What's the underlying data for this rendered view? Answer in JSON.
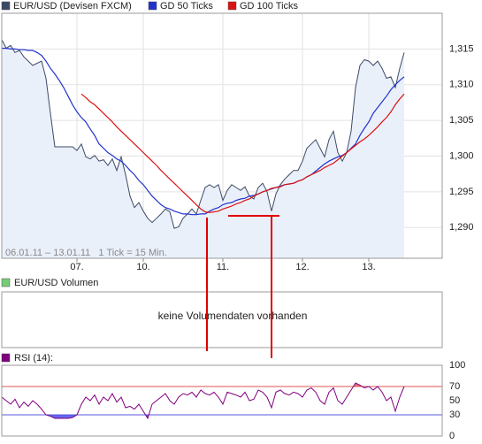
{
  "chart_data": [
    {
      "type": "line",
      "subtitle": "06.01.11 – 13.01.11   1 Tick = 15 Min.",
      "x": [
        0,
        1,
        2,
        3,
        4,
        5,
        6,
        7,
        8,
        9,
        10,
        11,
        12,
        13,
        14,
        15,
        16,
        17,
        18,
        19,
        20,
        21,
        22,
        23,
        24,
        25,
        26,
        27,
        28,
        29,
        30,
        31,
        32,
        33,
        34,
        35,
        36,
        37,
        38,
        39,
        40,
        41,
        42,
        43,
        44,
        45,
        46,
        47,
        48,
        49,
        50,
        51,
        52,
        53,
        54,
        55,
        56,
        57,
        58,
        59,
        60,
        61,
        62,
        63,
        64,
        65,
        66,
        67,
        68,
        69,
        70,
        71,
        72,
        73,
        74,
        75,
        76,
        77,
        78,
        79,
        80,
        81,
        82,
        83,
        84,
        85,
        86,
        87,
        88,
        89,
        90,
        91
      ],
      "series": [
        {
          "name": "EUR/USD (Devisen FXCM)",
          "color": "#3d4a66",
          "values": [
            1.3163,
            1.3151,
            1.3155,
            1.3145,
            1.3148,
            1.3139,
            1.3133,
            1.3127,
            1.313,
            1.3133,
            1.3109,
            1.306,
            1.3013,
            1.3013,
            1.3013,
            1.3013,
            1.3013,
            1.3008,
            1.3017,
            1.2999,
            1.2996,
            1.3001,
            1.2993,
            1.2995,
            1.2987,
            1.2996,
            1.298,
            1.2999,
            1.2974,
            1.2944,
            1.2928,
            1.2935,
            1.2923,
            1.2913,
            1.2907,
            1.2913,
            1.2919,
            1.2926,
            1.2922,
            1.2899,
            1.2901,
            1.2913,
            1.2919,
            1.2926,
            1.2919,
            1.2938,
            1.2956,
            1.296,
            1.2956,
            1.296,
            1.2938,
            1.2952,
            1.296,
            1.2956,
            1.2952,
            1.2957,
            1.2944,
            1.294,
            1.2956,
            1.2962,
            1.295,
            1.2923,
            1.2947,
            1.296,
            1.2968,
            1.2974,
            1.298,
            1.298,
            1.2993,
            1.3011,
            1.3017,
            1.3023,
            1.3011,
            1.2999,
            1.3023,
            1.3035,
            1.3005,
            1.2993,
            1.3005,
            1.3035,
            1.3096,
            1.3127,
            1.3135,
            1.3133,
            1.3127,
            1.3133,
            1.3123,
            1.3109,
            1.3111,
            1.3096,
            1.3123,
            1.3145
          ]
        },
        {
          "name": "GD 50 Ticks",
          "color": "#2233cc",
          "values": [
            1.3151,
            1.3151,
            1.315,
            1.315,
            1.3149,
            1.3149,
            1.3148,
            1.3148,
            1.3145,
            1.3141,
            1.3133,
            1.3123,
            1.3115,
            1.3106,
            1.3096,
            1.3084,
            1.3072,
            1.3062,
            1.3054,
            1.3048,
            1.3038,
            1.3029,
            1.3017,
            1.3011,
            1.3005,
            1.3001,
            1.2996,
            1.2993,
            1.2987,
            1.298,
            1.2974,
            1.2966,
            1.296,
            1.2952,
            1.2944,
            1.2938,
            1.2932,
            1.2928,
            1.2926,
            1.2923,
            1.2921,
            1.2919,
            1.2919,
            1.2918,
            1.2918,
            1.2919,
            1.2919,
            1.2923,
            1.2926,
            1.2928,
            1.2932,
            1.2934,
            1.2935,
            1.2938,
            1.294,
            1.2941,
            1.2944,
            1.2945,
            1.2947,
            1.295,
            1.2952,
            1.2954,
            1.2956,
            1.2958,
            1.296,
            1.2961,
            1.2962,
            1.2965,
            1.2967,
            1.2971,
            1.2974,
            1.2979,
            1.2984,
            1.2989,
            1.2993,
            1.2996,
            1.2999,
            1.3001,
            1.3005,
            1.3011,
            1.3017,
            1.3029,
            1.3039,
            1.3048,
            1.306,
            1.3068,
            1.3076,
            1.3084,
            1.3093,
            1.31,
            1.3106,
            1.3111
          ]
        },
        {
          "name": "GD 100 Ticks",
          "color": "#dd1111",
          "values": [
            null,
            null,
            null,
            null,
            null,
            null,
            null,
            null,
            null,
            null,
            null,
            null,
            null,
            null,
            null,
            null,
            null,
            null,
            1.3087,
            1.3082,
            1.3076,
            1.3072,
            1.3066,
            1.306,
            1.3054,
            1.3048,
            1.3041,
            1.3035,
            1.3029,
            1.3023,
            1.3017,
            1.3011,
            1.3005,
            1.2999,
            1.2993,
            1.2987,
            1.298,
            1.2974,
            1.2968,
            1.2962,
            1.2956,
            1.295,
            1.2944,
            1.2938,
            1.2932,
            1.2926,
            1.2922,
            1.2921,
            1.2922,
            1.2923,
            1.2926,
            1.2928,
            1.293,
            1.2933,
            1.2935,
            1.2938,
            1.294,
            1.2944,
            1.2947,
            1.295,
            1.2952,
            1.2955,
            1.2956,
            1.2957,
            1.296,
            1.2961,
            1.2962,
            1.2965,
            1.2967,
            1.2971,
            1.2974,
            1.2977,
            1.298,
            1.2984,
            1.2987,
            1.299,
            1.2995,
            1.3,
            1.3005,
            1.301,
            1.3015,
            1.302,
            1.3024,
            1.3029,
            1.3035,
            1.3041,
            1.3048,
            1.3054,
            1.3062,
            1.3072,
            1.308,
            1.3087
          ]
        }
      ],
      "area_color": "#eaf0fa",
      "xlim": [
        0,
        99.6
      ],
      "xticks": [
        {
          "value": 17,
          "label": "07."
        },
        {
          "value": 32,
          "label": "10."
        },
        {
          "value": 50,
          "label": "11."
        },
        {
          "value": 68,
          "label": "12."
        },
        {
          "value": 83,
          "label": "13."
        }
      ],
      "ylim": [
        1.2857,
        1.32
      ],
      "yticks": [
        {
          "value": 1.29,
          "label": "1,290"
        },
        {
          "value": 1.295,
          "label": "1,295"
        },
        {
          "value": 1.3,
          "label": "1,300"
        },
        {
          "value": 1.305,
          "label": "1,305"
        },
        {
          "value": 1.31,
          "label": "1,310"
        },
        {
          "value": 1.315,
          "label": "1,315"
        }
      ],
      "grid": true
    },
    {
      "type": "bar",
      "legend": "EUR/USD Volumen",
      "color": "#77cc77",
      "annotation": "keine Volumendaten vorhanden"
    },
    {
      "type": "line",
      "legend": "RSI (14):",
      "color": "#800080",
      "values": [
        55,
        50,
        45,
        52,
        40,
        48,
        42,
        50,
        45,
        38,
        30,
        28,
        25,
        25,
        25,
        25,
        26,
        30,
        45,
        55,
        50,
        58,
        45,
        55,
        50,
        60,
        48,
        55,
        40,
        42,
        38,
        45,
        35,
        25,
        45,
        50,
        55,
        60,
        50,
        45,
        55,
        60,
        58,
        62,
        55,
        65,
        60,
        58,
        62,
        55,
        45,
        62,
        60,
        58,
        55,
        62,
        50,
        52,
        65,
        62,
        55,
        40,
        62,
        65,
        60,
        58,
        62,
        60,
        55,
        65,
        68,
        62,
        50,
        45,
        62,
        68,
        50,
        45,
        55,
        65,
        75,
        72,
        68,
        70,
        65,
        70,
        62,
        50,
        55,
        35,
        55,
        70
      ],
      "xlim": [
        0,
        99.6
      ],
      "ylim": [
        0,
        100
      ],
      "yticks": [
        0,
        30,
        50,
        70,
        100
      ],
      "levels": [
        70,
        30
      ],
      "level_colors": [
        "#dd5555",
        "#5555dd"
      ],
      "fill_colors": [
        "#dd7777",
        "#6666ee"
      ]
    }
  ]
}
